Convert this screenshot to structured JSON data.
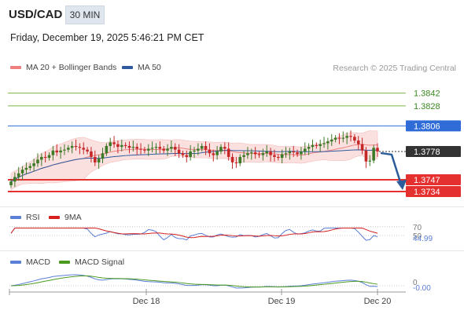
{
  "header": {
    "symbol": "USD/CAD",
    "timeframe": "30 MIN",
    "datetime": "Friday, December 19, 2025 5:46:21 PM CET"
  },
  "legend": {
    "ma20_bb": "MA 20 + Bollinger Bands",
    "ma50": "MA 50",
    "research": "Research © 2025 Trading Central",
    "rsi": "RSI",
    "rsi_ma": "9MA",
    "macd": "MACD",
    "macd_signal": "MACD Signal"
  },
  "colors": {
    "candle_up": "#3c7a27",
    "candle_down": "#c62828",
    "ma20": "#f08080",
    "bollinger_fill": "#fbe0e0",
    "ma50": "#2f5a9e",
    "resistance": "#7ab648",
    "pivot": "#2f6cd8",
    "support": "#e53030",
    "current": "#333333",
    "rsi": "#5b7fd6",
    "rsi_ma": "#d62020",
    "macd": "#5b7fd6",
    "macd_signal": "#4a9a20",
    "arrow": "#2a5b9a"
  },
  "chart_data": {
    "type": "candlestick",
    "x_ticks": [
      "Dec 18",
      "Dec 19",
      "Dec 20"
    ],
    "levels": [
      {
        "label": "1.3842",
        "value": 1.3842,
        "kind": "resistance"
      },
      {
        "label": "1.3828",
        "value": 1.3828,
        "kind": "resistance"
      },
      {
        "label": "1.3806",
        "value": 1.3806,
        "kind": "pivot"
      },
      {
        "label": "1.3778",
        "value": 1.3778,
        "kind": "current"
      },
      {
        "label": "1.3747",
        "value": 1.3747,
        "kind": "support"
      },
      {
        "label": "1.3734",
        "value": 1.3734,
        "kind": "support"
      }
    ],
    "price_range": [
      1.3722,
      1.3858
    ],
    "close": [
      1.3745,
      1.375,
      1.3754,
      1.3758,
      1.376,
      1.3762,
      1.3765,
      1.3769,
      1.3772,
      1.3771,
      1.3774,
      1.3779,
      1.3777,
      1.3779,
      1.378,
      1.3782,
      1.3784,
      1.3783,
      1.3782,
      1.378,
      1.3778,
      1.3772,
      1.3766,
      1.377,
      1.3776,
      1.3784,
      1.3788,
      1.3786,
      1.3783,
      1.3785,
      1.3784,
      1.3782,
      1.3783,
      1.3781,
      1.378,
      1.3779,
      1.3781,
      1.3782,
      1.3783,
      1.3781,
      1.3779,
      1.3781,
      1.3783,
      1.378,
      1.3776,
      1.3774,
      1.3772,
      1.3778,
      1.3779,
      1.3781,
      1.3784,
      1.378,
      1.3776,
      1.3774,
      1.3778,
      1.3783,
      1.3781,
      1.3772,
      1.3766,
      1.3765,
      1.3772,
      1.3774,
      1.3776,
      1.3777,
      1.3775,
      1.3774,
      1.3776,
      1.3778,
      1.3774,
      1.3772,
      1.3771,
      1.3775,
      1.3776,
      1.3778,
      1.3777,
      1.3775,
      1.3778,
      1.3781,
      1.3783,
      1.3785,
      1.3784,
      1.3786,
      1.3787,
      1.3789,
      1.3791,
      1.3793,
      1.3792,
      1.3793,
      1.3795,
      1.3794,
      1.379,
      1.3786,
      1.3779,
      1.3767,
      1.3768,
      1.3782,
      1.3778
    ],
    "rsi_levels": [
      "70",
      "50"
    ],
    "rsi_value": "44.99",
    "macd_value": "-0.00",
    "macd_zero_label": "0"
  }
}
